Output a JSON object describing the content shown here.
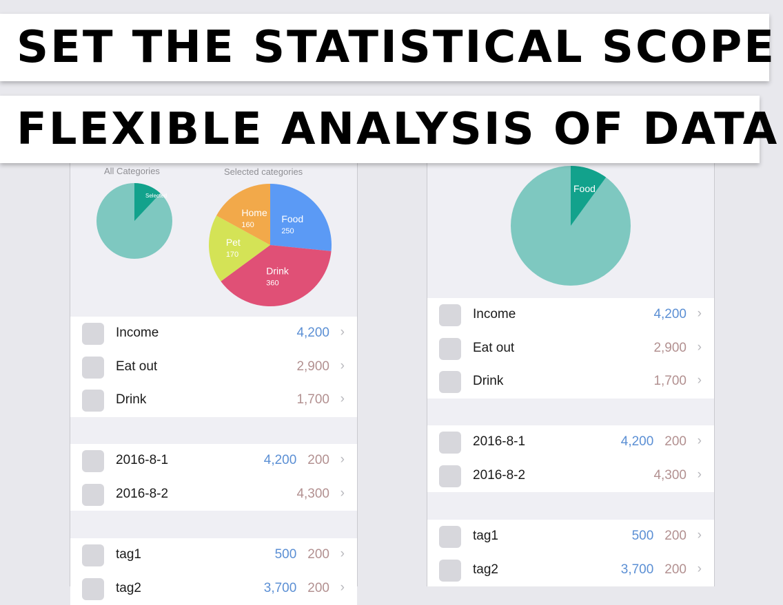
{
  "banners": {
    "line1": "SET THE STATISTICAL SCOPE",
    "line2": "FLEXIBLE ANALYSIS OF DATA"
  },
  "left_phone": {
    "all_caption": "All Categories",
    "selected_caption": "Selected categories",
    "small_pie_label": "Selected",
    "selected_fraction": 0.12,
    "categories": [
      {
        "label": "Income",
        "value": "4,200",
        "color": "blue"
      },
      {
        "label": "Eat out",
        "value": "2,900",
        "color": "brown"
      },
      {
        "label": "Drink",
        "value": "1,700",
        "color": "brown"
      }
    ],
    "dates": [
      {
        "label": "2016-8-1",
        "value": "4,200",
        "value2": "200"
      },
      {
        "label": "2016-8-2",
        "value": "4,300"
      }
    ],
    "tags": [
      {
        "label": "tag1",
        "value": "500",
        "value2": "200"
      },
      {
        "label": "tag2",
        "value": "3,700",
        "value2": "200"
      }
    ]
  },
  "right_phone": {
    "pie_label": "Food",
    "selected_fraction": 0.1,
    "categories": [
      {
        "label": "Income",
        "value": "4,200",
        "color": "blue"
      },
      {
        "label": "Eat out",
        "value": "2,900",
        "color": "brown"
      },
      {
        "label": "Drink",
        "value": "1,700",
        "color": "brown"
      }
    ],
    "dates": [
      {
        "label": "2016-8-1",
        "value": "4,200",
        "value2": "200"
      },
      {
        "label": "2016-8-2",
        "value": "4,300"
      }
    ],
    "tags": [
      {
        "label": "tag1",
        "value": "500",
        "value2": "200"
      },
      {
        "label": "tag2",
        "value": "3,700",
        "value2": "200"
      }
    ]
  },
  "chart_data": [
    {
      "type": "pie",
      "title": "Selected categories",
      "slices": [
        {
          "label": "Food",
          "value": 250,
          "color": "#5b9af5"
        },
        {
          "label": "Drink",
          "value": 360,
          "color": "#e05076"
        },
        {
          "label": "Pet",
          "value": 170,
          "color": "#d4e356"
        },
        {
          "label": "Home",
          "value": 160,
          "color": "#f2a94a"
        }
      ]
    }
  ],
  "colors": {
    "teal_light": "#7ec8c0",
    "teal_dark": "#12a28c",
    "value_blue": "#5b8fd4",
    "value_brown": "#b29090"
  }
}
